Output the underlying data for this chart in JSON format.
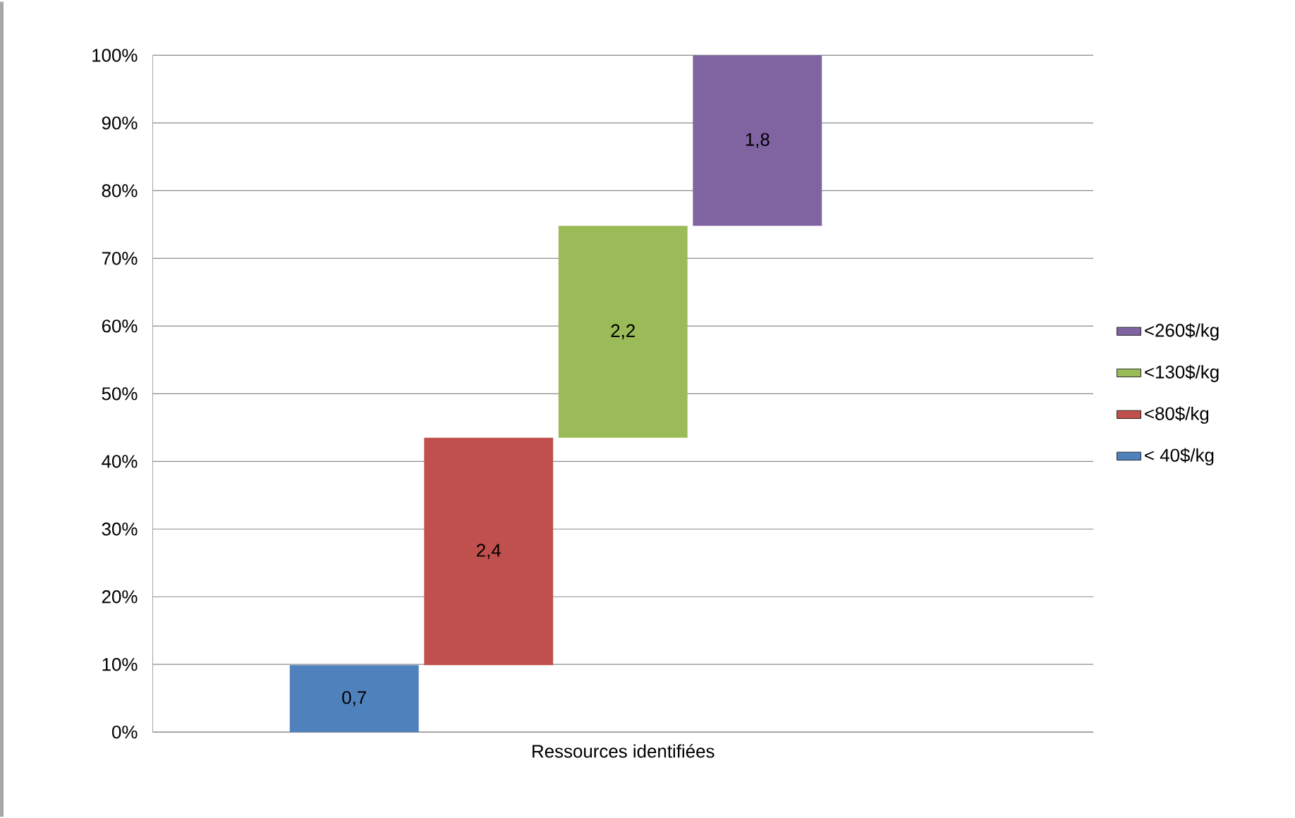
{
  "chart_data": {
    "type": "bar",
    "xlabel": "Ressources identifiées",
    "categories": [
      null,
      null,
      null,
      null,
      null,
      null,
      null
    ],
    "series": [
      {
        "name": "< 40$/kg",
        "color": "#4f81bd",
        "values": [
          null,
          9.9,
          null,
          null,
          null,
          null,
          null
        ],
        "base": [
          null,
          0,
          null,
          null,
          null,
          null,
          null
        ]
      },
      {
        "name": "<80$/kg",
        "color": "#c0504d",
        "values": [
          null,
          null,
          33.6,
          null,
          null,
          null,
          null
        ],
        "base": [
          null,
          null,
          9.9,
          null,
          null,
          null,
          null
        ]
      },
      {
        "name": "<130$/kg",
        "color": "#9bbb59",
        "values": [
          null,
          null,
          null,
          31.3,
          null,
          null,
          null
        ],
        "base": [
          null,
          null,
          null,
          43.5,
          null,
          null,
          null
        ]
      },
      {
        "name": "<260$/kg",
        "color": "#8064a2",
        "values": [
          null,
          null,
          null,
          null,
          25.2,
          null,
          null
        ],
        "base": [
          null,
          null,
          null,
          null,
          74.8,
          null,
          null
        ]
      }
    ],
    "annotations": [
      "0,7",
      "2,4",
      "2,2",
      "1,8"
    ],
    "ylim": [
      0,
      100
    ],
    "yticks": [
      {
        "value": 0,
        "label": "0%"
      },
      {
        "value": 10,
        "label": "10%"
      },
      {
        "value": 20,
        "label": "20%"
      },
      {
        "value": 30,
        "label": "30%"
      },
      {
        "value": 40,
        "label": "40%"
      },
      {
        "value": 50,
        "label": "50%"
      },
      {
        "value": 60,
        "label": "60%"
      },
      {
        "value": 70,
        "label": "70%"
      },
      {
        "value": 80,
        "label": "80%"
      },
      {
        "value": 90,
        "label": "90%"
      },
      {
        "value": 100,
        "label": "100%"
      }
    ],
    "grid": "y",
    "legend": "right"
  }
}
